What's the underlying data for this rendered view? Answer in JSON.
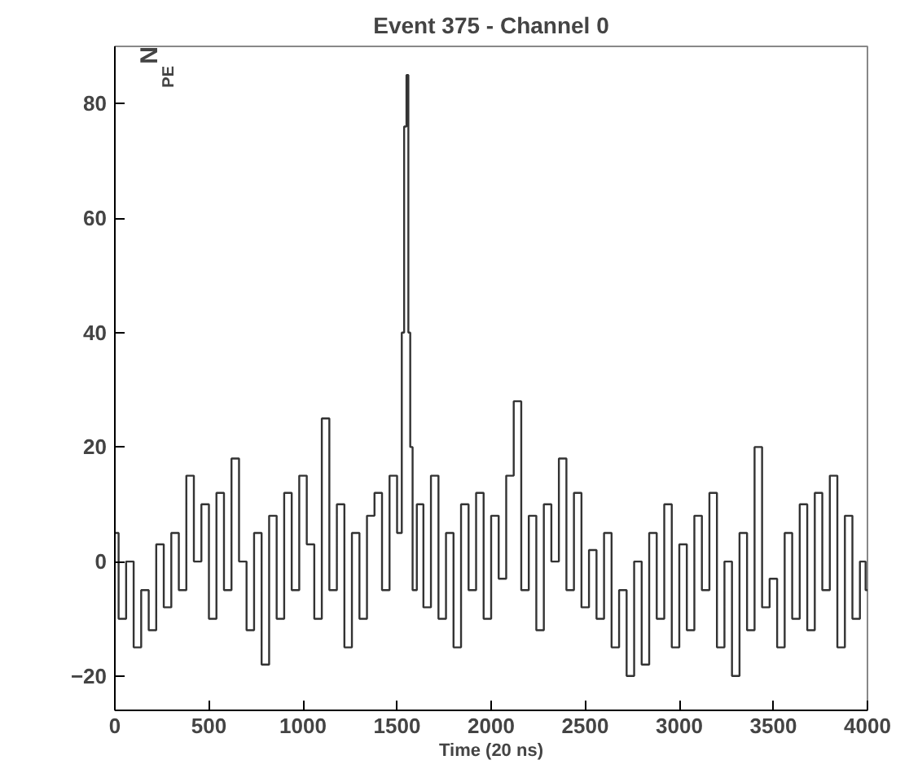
{
  "chart_data": {
    "type": "step",
    "title": "Event 375 - Channel 0",
    "xlabel": "Time (20 ns)",
    "ylabel": "N$_{PE}$",
    "x": [
      0,
      40,
      80,
      120,
      160,
      200,
      240,
      280,
      320,
      360,
      400,
      440,
      480,
      520,
      560,
      600,
      640,
      680,
      720,
      760,
      800,
      840,
      880,
      920,
      960,
      1000,
      1040,
      1080,
      1120,
      1160,
      1200,
      1240,
      1280,
      1320,
      1360,
      1400,
      1440,
      1480,
      1520,
      1530,
      1545,
      1555,
      1565,
      1575,
      1590,
      1620,
      1660,
      1700,
      1740,
      1780,
      1820,
      1860,
      1900,
      1940,
      1980,
      2020,
      2060,
      2100,
      2140,
      2180,
      2220,
      2260,
      2300,
      2340,
      2380,
      2420,
      2460,
      2500,
      2540,
      2580,
      2620,
      2660,
      2700,
      2740,
      2780,
      2820,
      2860,
      2900,
      2940,
      2980,
      3020,
      3060,
      3100,
      3140,
      3180,
      3220,
      3260,
      3300,
      3340,
      3380,
      3420,
      3460,
      3500,
      3540,
      3580,
      3620,
      3660,
      3700,
      3740,
      3780,
      3820,
      3860,
      3900,
      3940,
      3980,
      4000
    ],
    "series": [
      {
        "color": "#333333",
        "values": [
          5,
          -10,
          0,
          -15,
          -5,
          -12,
          3,
          -8,
          5,
          -5,
          15,
          0,
          10,
          -10,
          12,
          -5,
          18,
          0,
          -12,
          5,
          -18,
          8,
          -10,
          12,
          -5,
          15,
          3,
          -10,
          25,
          -5,
          10,
          -15,
          5,
          -10,
          8,
          12,
          -5,
          15,
          5,
          40,
          76,
          85,
          40,
          20,
          -5,
          10,
          -8,
          15,
          -10,
          5,
          -15,
          10,
          -5,
          12,
          -10,
          8,
          -3,
          15,
          28,
          -5,
          8,
          -12,
          10,
          0,
          18,
          -5,
          12,
          -8,
          2,
          -10,
          5,
          -15,
          -5,
          -20,
          0,
          -18,
          5,
          -10,
          10,
          -15,
          3,
          -12,
          8,
          -5,
          12,
          -15,
          0,
          -20,
          5,
          -12,
          20,
          -8,
          -3,
          -15,
          5,
          -10,
          10,
          -12,
          12,
          -5,
          15,
          -15,
          8,
          -10,
          0,
          -5
        ]
      }
    ],
    "xlim": [
      0,
      4000
    ],
    "ylim": [
      -26,
      90
    ],
    "xticks": [
      0,
      500,
      1000,
      1500,
      2000,
      2500,
      3000,
      3500,
      4000
    ],
    "yticks": [
      -20,
      0,
      20,
      40,
      60,
      80
    ],
    "grid": false
  }
}
